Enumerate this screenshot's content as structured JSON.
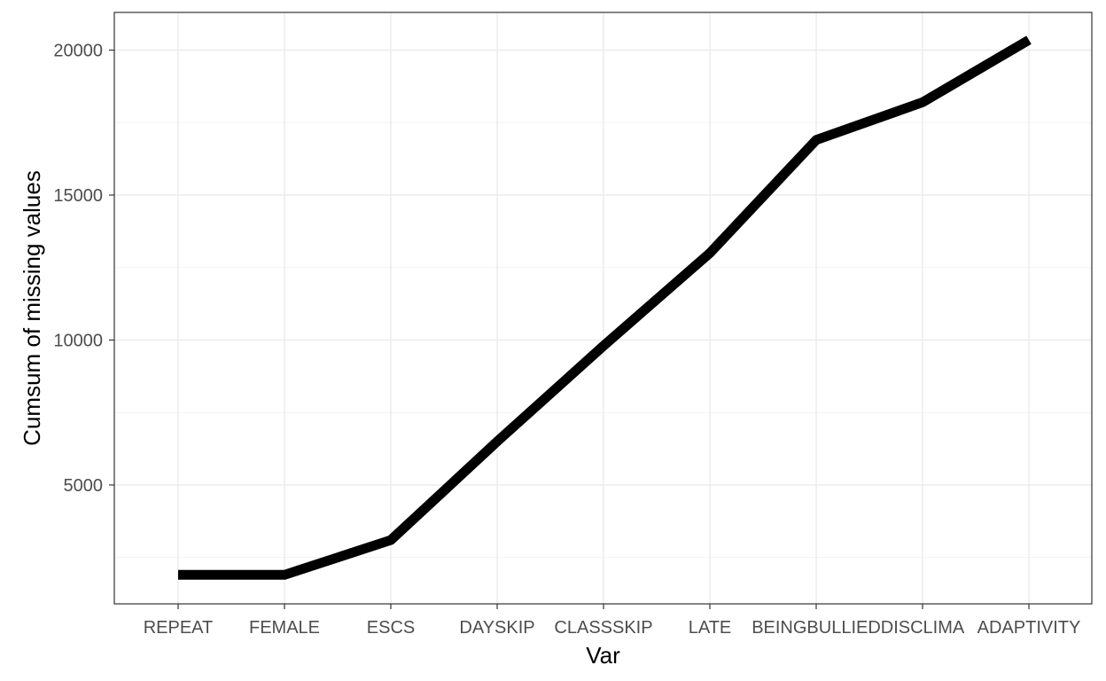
{
  "chart_data": {
    "type": "line",
    "title": "",
    "xlabel": "Var",
    "ylabel": "Cumsum of missing values",
    "categories": [
      "REPEAT",
      "FEMALE",
      "ESCS",
      "DAYSKIP",
      "CLASSSKIP",
      "LATE",
      "BEINGBULLIED",
      "DISCLIMA",
      "ADAPTIVITY"
    ],
    "series": [
      {
        "values": [
          1900,
          1900,
          3100,
          6500,
          9800,
          13000,
          16900,
          18200,
          20350
        ]
      }
    ],
    "ylim": [
      900,
      21300
    ],
    "yticks": [
      5000,
      10000,
      15000,
      20000
    ],
    "grid": true,
    "legend": "none",
    "line_color": "#000000"
  }
}
